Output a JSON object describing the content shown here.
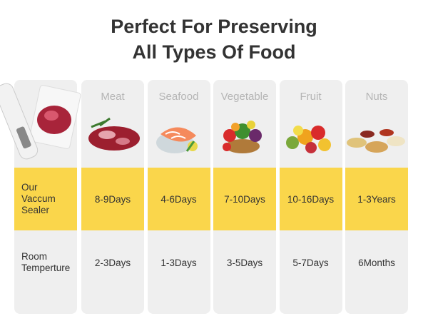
{
  "title_lines": [
    "Perfect For Preserving",
    "All Types Of Food"
  ],
  "table": {
    "columns": [
      "Meat",
      "Seafood",
      "Vegetable",
      "Fruit",
      "Nuts"
    ],
    "rows": [
      {
        "label": "Our Vaccum Sealer",
        "cells": [
          "8-9Days",
          "4-6Days",
          "7-10Days",
          "10-16Days",
          "1-3Years"
        ]
      },
      {
        "label": "Room Temperture",
        "cells": [
          "2-3Days",
          "1-3Days",
          "3-5Days",
          "5-7Days",
          "6Months"
        ]
      }
    ]
  }
}
